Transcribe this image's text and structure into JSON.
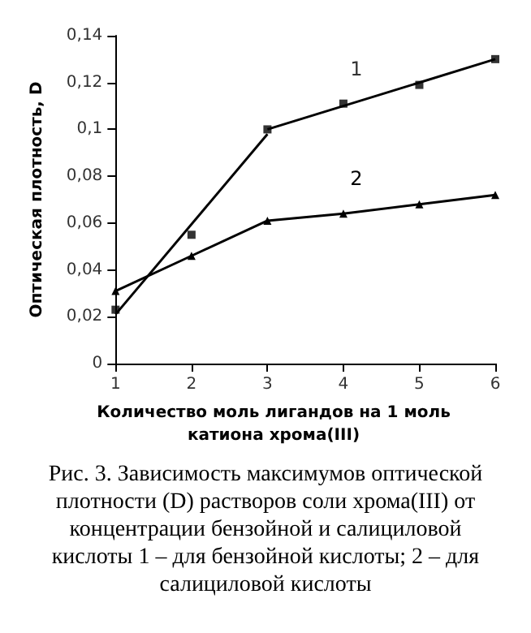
{
  "chart_data": {
    "type": "line",
    "xlabel": "Количество моль лигандов на 1 моль катиона хрома(III)",
    "ylabel": "Оптическая плотность, D",
    "x": [
      1,
      2,
      3,
      4,
      5,
      6
    ],
    "series": [
      {
        "name": "1",
        "type": "scatter",
        "color": "#000000",
        "marker": "square",
        "values": [
          0.023,
          0.055,
          0.1,
          0.111,
          0.119,
          0.13
        ]
      },
      {
        "color": "#000000",
        "marker": "none",
        "x": [
          1,
          3
        ],
        "values": [
          0.021,
          0.098
        ]
      },
      {
        "color": "#000000",
        "marker": "none",
        "x": [
          3,
          6
        ],
        "values": [
          0.1,
          0.13
        ]
      },
      {
        "name": "2",
        "color": "#000000",
        "marker": "triangle",
        "values": [
          0.031,
          0.046,
          0.061,
          0.064,
          0.068,
          0.072
        ]
      }
    ],
    "xlim": [
      1,
      6
    ],
    "xticks": [
      1,
      2,
      3,
      4,
      5,
      6
    ],
    "ylim": [
      0,
      0.14
    ],
    "yticks": [
      0,
      {
        "value": 0.02,
        "label": "0,02"
      },
      {
        "value": 0.04,
        "label": "0,04"
      },
      {
        "value": 0.06,
        "label": "0,06"
      },
      {
        "value": 0.08,
        "label": "0,08"
      },
      {
        "value": 0.1,
        "label": "0,1"
      },
      {
        "value": 0.12,
        "label": "0,12"
      },
      {
        "value": 0.14,
        "label": "0,14"
      }
    ],
    "grid": false,
    "legend": false,
    "line_style": "solid",
    "annotations": [
      "Рис. 3. Зависимость максимумов оптической плотности (D) растворов соли хрома(III) от концентрации бензойной и салициловой кислоты 1 – для бензойной кислоты; 2 – для салициловой кислоты"
    ]
  }
}
